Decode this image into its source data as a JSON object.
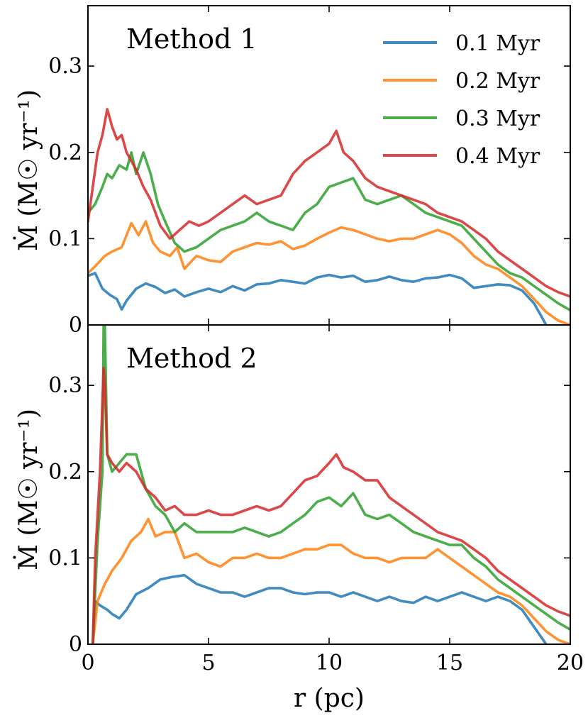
{
  "chart_data": [
    {
      "type": "line",
      "title": "Method 1",
      "xlabel": "",
      "ylabel": "Ṁ (M☉ yr⁻¹)",
      "xlim": [
        0,
        20
      ],
      "ylim": [
        0,
        0.37
      ],
      "xticks": [
        0,
        5,
        10,
        15,
        20
      ],
      "yticks": [
        0,
        0.1,
        0.2,
        0.3
      ],
      "ytick_labels": [
        "0",
        "0.1",
        "0.2",
        "0.3"
      ],
      "legend": {
        "placement": "top-right"
      },
      "series": [
        {
          "name": "0.1 Myr",
          "color": "#1f77b4",
          "x": [
            0,
            0.3,
            0.6,
            0.9,
            1.2,
            1.4,
            1.6,
            2.0,
            2.4,
            2.8,
            3.2,
            3.6,
            4.0,
            4.5,
            5.0,
            5.5,
            6.0,
            6.5,
            7.0,
            7.5,
            8.0,
            8.5,
            9.0,
            9.5,
            10.0,
            10.5,
            11.0,
            11.5,
            12.0,
            12.5,
            13.0,
            13.5,
            14.0,
            14.5,
            15.0,
            15.5,
            16.0,
            16.5,
            17.0,
            17.5,
            18.0,
            18.5,
            18.8,
            19.0
          ],
          "y": [
            0.057,
            0.06,
            0.042,
            0.035,
            0.03,
            0.018,
            0.028,
            0.042,
            0.048,
            0.044,
            0.037,
            0.041,
            0.033,
            0.038,
            0.042,
            0.038,
            0.045,
            0.04,
            0.047,
            0.048,
            0.052,
            0.05,
            0.048,
            0.055,
            0.058,
            0.055,
            0.057,
            0.05,
            0.052,
            0.056,
            0.052,
            0.05,
            0.054,
            0.055,
            0.058,
            0.054,
            0.043,
            0.045,
            0.047,
            0.046,
            0.04,
            0.025,
            0.01,
            0.0
          ]
        },
        {
          "name": "0.2 Myr",
          "color": "#ff7f0e",
          "x": [
            0,
            0.3,
            0.7,
            1.0,
            1.4,
            1.8,
            2.1,
            2.4,
            2.7,
            3.0,
            3.4,
            3.7,
            4.0,
            4.5,
            5.0,
            5.5,
            6.0,
            6.5,
            7.0,
            7.5,
            8.0,
            8.5,
            9.0,
            9.5,
            10.0,
            10.5,
            11.0,
            11.5,
            12.0,
            12.5,
            13.0,
            13.5,
            14.0,
            14.5,
            15.0,
            15.5,
            16.0,
            16.5,
            17.0,
            17.5,
            18.0,
            18.5,
            19.0,
            19.5,
            20.0
          ],
          "y": [
            0.06,
            0.068,
            0.08,
            0.085,
            0.09,
            0.118,
            0.104,
            0.12,
            0.095,
            0.085,
            0.08,
            0.09,
            0.065,
            0.08,
            0.075,
            0.073,
            0.085,
            0.09,
            0.095,
            0.093,
            0.097,
            0.088,
            0.092,
            0.1,
            0.107,
            0.113,
            0.11,
            0.105,
            0.1,
            0.097,
            0.1,
            0.1,
            0.105,
            0.11,
            0.105,
            0.095,
            0.08,
            0.07,
            0.065,
            0.055,
            0.045,
            0.03,
            0.015,
            0.005,
            0.0
          ]
        },
        {
          "name": "0.3 Myr",
          "color": "#2ca02c",
          "x": [
            0,
            0.3,
            0.6,
            0.8,
            1.0,
            1.3,
            1.6,
            1.8,
            2.0,
            2.3,
            2.6,
            2.9,
            3.2,
            3.6,
            4.0,
            4.5,
            5.0,
            5.5,
            6.0,
            6.5,
            7.0,
            7.5,
            8.0,
            8.5,
            9.0,
            9.5,
            10.0,
            10.5,
            11.0,
            11.5,
            12.0,
            12.5,
            13.0,
            13.5,
            14.0,
            14.5,
            15.0,
            15.5,
            16.0,
            16.5,
            17.0,
            17.5,
            18.0,
            18.5,
            19.0,
            19.5,
            20.0
          ],
          "y": [
            0.13,
            0.14,
            0.16,
            0.175,
            0.17,
            0.185,
            0.18,
            0.2,
            0.175,
            0.2,
            0.175,
            0.14,
            0.12,
            0.095,
            0.085,
            0.09,
            0.1,
            0.11,
            0.115,
            0.12,
            0.13,
            0.12,
            0.115,
            0.11,
            0.13,
            0.14,
            0.16,
            0.165,
            0.17,
            0.145,
            0.14,
            0.145,
            0.15,
            0.14,
            0.13,
            0.125,
            0.12,
            0.115,
            0.1,
            0.085,
            0.07,
            0.06,
            0.055,
            0.045,
            0.035,
            0.025,
            0.017
          ]
        },
        {
          "name": "0.4 Myr",
          "color": "#d62728",
          "x": [
            0,
            0.2,
            0.4,
            0.6,
            0.8,
            1.0,
            1.2,
            1.4,
            1.6,
            1.8,
            2.0,
            2.3,
            2.6,
            3.0,
            3.4,
            3.8,
            4.2,
            4.6,
            5.0,
            5.5,
            6.0,
            6.5,
            7.0,
            7.5,
            8.0,
            8.5,
            9.0,
            9.5,
            10.0,
            10.3,
            10.6,
            11.0,
            11.5,
            12.0,
            12.5,
            13.0,
            13.5,
            14.0,
            14.5,
            15.0,
            15.5,
            16.0,
            16.5,
            17.0,
            17.5,
            18.0,
            18.5,
            19.0,
            19.5,
            20.0
          ],
          "y": [
            0.12,
            0.16,
            0.2,
            0.22,
            0.25,
            0.23,
            0.215,
            0.22,
            0.2,
            0.19,
            0.18,
            0.16,
            0.145,
            0.115,
            0.1,
            0.11,
            0.12,
            0.115,
            0.12,
            0.13,
            0.14,
            0.15,
            0.14,
            0.145,
            0.15,
            0.175,
            0.19,
            0.2,
            0.21,
            0.225,
            0.2,
            0.19,
            0.17,
            0.16,
            0.155,
            0.15,
            0.145,
            0.14,
            0.13,
            0.125,
            0.12,
            0.11,
            0.1,
            0.085,
            0.075,
            0.065,
            0.055,
            0.045,
            0.038,
            0.033
          ]
        }
      ]
    },
    {
      "type": "line",
      "title": "Method 2",
      "xlabel": "r (pc)",
      "ylabel": "Ṁ (M☉ yr⁻¹)",
      "xlim": [
        0,
        20
      ],
      "ylim": [
        0,
        0.37
      ],
      "xticks": [
        0,
        5,
        10,
        15,
        20
      ],
      "xtick_labels": [
        "0",
        "5",
        "10",
        "15",
        "20"
      ],
      "yticks": [
        0,
        0.1,
        0.2,
        0.3
      ],
      "ytick_labels": [
        "0",
        "0.1",
        "0.2",
        "0.3"
      ],
      "series": [
        {
          "name": "0.1 Myr",
          "color": "#1f77b4",
          "x": [
            0.2,
            0.3,
            0.5,
            0.8,
            1.0,
            1.3,
            1.6,
            2.0,
            2.5,
            3.0,
            3.5,
            4.0,
            4.5,
            5.0,
            5.5,
            6.0,
            6.5,
            7.0,
            7.5,
            8.0,
            8.5,
            9.0,
            9.5,
            10.0,
            10.5,
            11.0,
            11.5,
            12.0,
            12.5,
            13.0,
            13.5,
            14.0,
            14.5,
            15.0,
            15.5,
            16.0,
            16.5,
            17.0,
            17.5,
            18.0,
            18.5,
            19.0
          ],
          "y": [
            0.0,
            0.05,
            0.045,
            0.04,
            0.035,
            0.03,
            0.04,
            0.058,
            0.065,
            0.075,
            0.078,
            0.08,
            0.07,
            0.065,
            0.06,
            0.06,
            0.055,
            0.06,
            0.065,
            0.065,
            0.06,
            0.058,
            0.06,
            0.06,
            0.055,
            0.06,
            0.055,
            0.05,
            0.055,
            0.05,
            0.048,
            0.055,
            0.05,
            0.055,
            0.06,
            0.055,
            0.05,
            0.055,
            0.05,
            0.04,
            0.02,
            0.0
          ]
        },
        {
          "name": "0.2 Myr",
          "color": "#ff7f0e",
          "x": [
            0.2,
            0.4,
            0.7,
            1.0,
            1.4,
            1.8,
            2.2,
            2.5,
            2.8,
            3.2,
            3.6,
            4.0,
            4.5,
            5.0,
            5.5,
            6.0,
            6.5,
            7.0,
            7.5,
            8.0,
            8.5,
            9.0,
            9.5,
            10.0,
            10.5,
            11.0,
            11.5,
            12.0,
            12.5,
            13.0,
            13.5,
            14.0,
            14.5,
            15.0,
            15.5,
            16.0,
            16.5,
            17.0,
            17.5,
            18.0,
            18.5,
            19.0,
            19.5,
            20.0
          ],
          "y": [
            0.0,
            0.05,
            0.07,
            0.085,
            0.1,
            0.12,
            0.13,
            0.145,
            0.125,
            0.13,
            0.13,
            0.1,
            0.105,
            0.095,
            0.09,
            0.1,
            0.1,
            0.105,
            0.1,
            0.1,
            0.105,
            0.11,
            0.11,
            0.115,
            0.115,
            0.105,
            0.1,
            0.1,
            0.095,
            0.1,
            0.1,
            0.1,
            0.11,
            0.1,
            0.09,
            0.08,
            0.07,
            0.06,
            0.055,
            0.045,
            0.03,
            0.015,
            0.005,
            0.0
          ]
        },
        {
          "name": "0.3 Myr",
          "color": "#2ca02c",
          "x": [
            0.2,
            0.4,
            0.6,
            0.65,
            0.7,
            0.8,
            1.0,
            1.3,
            1.6,
            2.0,
            2.4,
            2.8,
            3.2,
            3.6,
            4.0,
            4.5,
            5.0,
            5.5,
            6.0,
            6.5,
            7.0,
            7.5,
            8.0,
            8.5,
            9.0,
            9.5,
            10.0,
            10.5,
            11.0,
            11.5,
            12.0,
            12.5,
            13.0,
            13.5,
            14.0,
            14.5,
            15.0,
            15.5,
            16.0,
            16.5,
            17.0,
            17.5,
            18.0,
            18.5,
            19.0,
            19.5,
            20.0
          ],
          "y": [
            0.0,
            0.12,
            0.2,
            0.37,
            0.37,
            0.22,
            0.2,
            0.21,
            0.22,
            0.22,
            0.18,
            0.16,
            0.15,
            0.13,
            0.14,
            0.13,
            0.13,
            0.13,
            0.13,
            0.135,
            0.13,
            0.125,
            0.13,
            0.14,
            0.15,
            0.165,
            0.17,
            0.16,
            0.175,
            0.15,
            0.145,
            0.15,
            0.14,
            0.13,
            0.125,
            0.12,
            0.115,
            0.115,
            0.1,
            0.09,
            0.075,
            0.065,
            0.055,
            0.045,
            0.035,
            0.025,
            0.017
          ]
        },
        {
          "name": "0.4 Myr",
          "color": "#d62728",
          "x": [
            0.2,
            0.3,
            0.5,
            0.65,
            0.7,
            0.8,
            1.0,
            1.3,
            1.6,
            2.0,
            2.4,
            2.8,
            3.2,
            3.6,
            4.0,
            4.5,
            5.0,
            5.5,
            6.0,
            6.5,
            7.0,
            7.5,
            8.0,
            8.5,
            9.0,
            9.5,
            10.0,
            10.3,
            10.6,
            11.0,
            11.5,
            12.0,
            12.5,
            13.0,
            13.5,
            14.0,
            14.5,
            15.0,
            15.5,
            16.0,
            16.5,
            17.0,
            17.5,
            18.0,
            18.5,
            19.0,
            19.5,
            20.0
          ],
          "y": [
            0.0,
            0.1,
            0.2,
            0.32,
            0.3,
            0.22,
            0.21,
            0.2,
            0.21,
            0.2,
            0.18,
            0.17,
            0.155,
            0.16,
            0.15,
            0.15,
            0.155,
            0.15,
            0.15,
            0.155,
            0.16,
            0.155,
            0.16,
            0.175,
            0.19,
            0.195,
            0.21,
            0.22,
            0.205,
            0.2,
            0.19,
            0.19,
            0.17,
            0.16,
            0.15,
            0.14,
            0.13,
            0.125,
            0.12,
            0.11,
            0.1,
            0.085,
            0.075,
            0.065,
            0.055,
            0.045,
            0.038,
            0.033
          ]
        }
      ]
    }
  ]
}
